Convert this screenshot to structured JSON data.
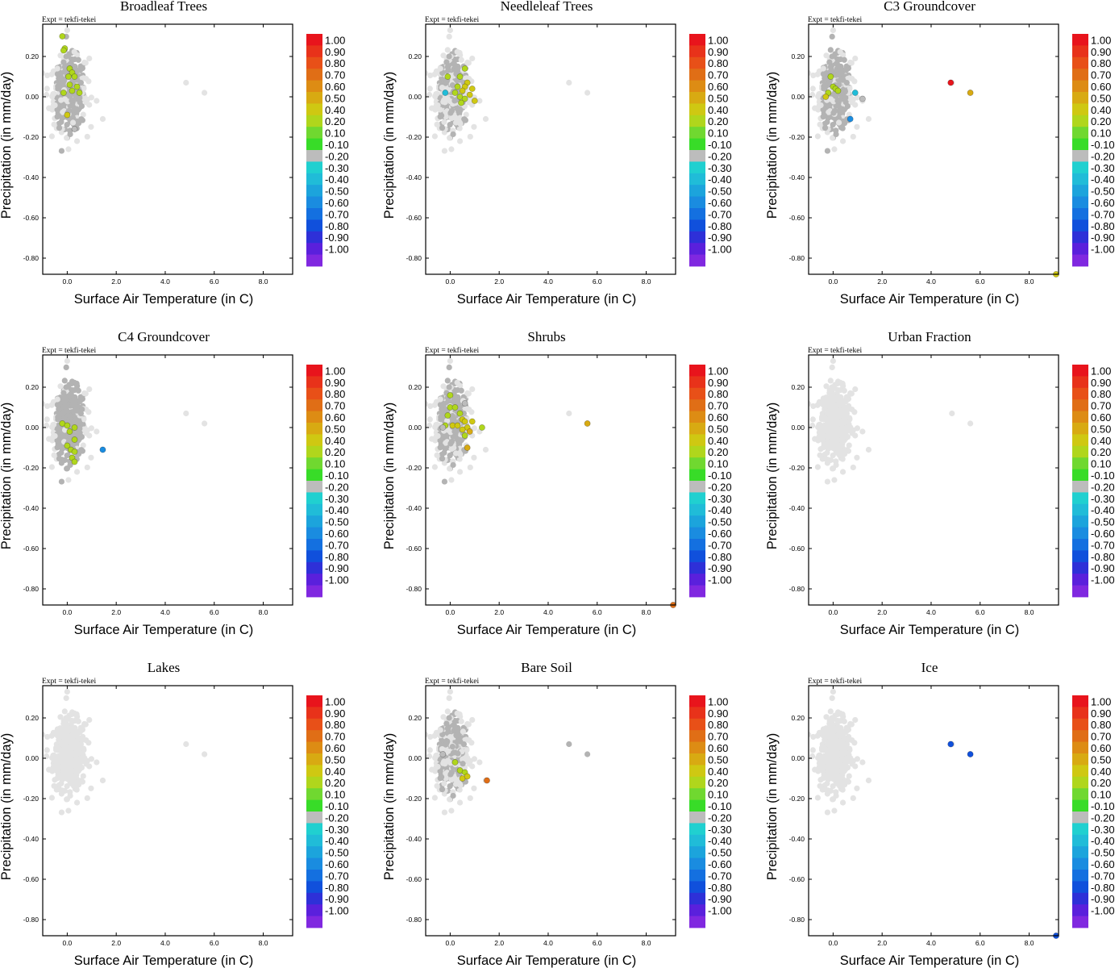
{
  "expt_label": "Expt = tekfi-tekei",
  "xlabel": "Surface Air Temperature (in C)",
  "ylabel": "Precipitation (in mm/day)",
  "x_ticks": [
    0,
    2,
    4,
    6,
    8
  ],
  "x_tick_labels": [
    "0.0",
    "2.0",
    "4.0",
    "6.0",
    "8.0"
  ],
  "y_ticks": [
    0.2,
    0,
    -0.2,
    -0.4,
    -0.6,
    -0.8
  ],
  "y_tick_labels": [
    "0.20",
    "0.00",
    "-0.20",
    "-0.40",
    "-0.60",
    "-0.80"
  ],
  "colorbar": {
    "labels": [
      "1.00",
      "0.90",
      "0.80",
      "0.70",
      "0.60",
      "0.50",
      "0.40",
      "0.20",
      "0.10",
      "-0.10",
      "-0.20",
      "-0.30",
      "-0.40",
      "-0.50",
      "-0.60",
      "-0.70",
      "-0.80",
      "-0.90",
      "-1.00"
    ],
    "colors": [
      "#e8141c",
      "#e8321a",
      "#e85018",
      "#e06e16",
      "#dd8c14",
      "#d8aa12",
      "#cfc812",
      "#b0d61c",
      "#70d830",
      "#38dc28",
      "#bcbcbc",
      "#20d0d0",
      "#20bcd8",
      "#1ca4dc",
      "#1a8ce0",
      "#1470e0",
      "#1050dc",
      "#2e30d8",
      "#5a20dc",
      "#8028e0"
    ]
  },
  "chart_data": [
    {
      "type": "scatter",
      "title": "Broadleaf Trees",
      "xlim": [
        -1,
        9.2
      ],
      "ylim": [
        -0.88,
        0.36
      ],
      "colored_points": [
        {
          "x": -0.2,
          "y": 0.3,
          "v": 0.15
        },
        {
          "x": -0.1,
          "y": 0.24,
          "v": 0.15
        },
        {
          "x": -0.15,
          "y": 0.23,
          "v": 0.15
        },
        {
          "x": 0.1,
          "y": 0.14,
          "v": 0.15
        },
        {
          "x": 0.2,
          "y": 0.12,
          "v": 0.15
        },
        {
          "x": 0.05,
          "y": 0.1,
          "v": 0.15
        },
        {
          "x": 0.3,
          "y": 0.1,
          "v": 0.15
        },
        {
          "x": 0.1,
          "y": 0.06,
          "v": 0.15
        },
        {
          "x": 0.4,
          "y": 0.05,
          "v": 0.15
        },
        {
          "x": -0.15,
          "y": 0.02,
          "v": 0.15
        },
        {
          "x": 0.2,
          "y": 0.03,
          "v": 0.15
        },
        {
          "x": 0.5,
          "y": 0.02,
          "v": 0.15
        },
        {
          "x": 0.0,
          "y": -0.09,
          "v": 0.3
        },
        {
          "x": 0.3,
          "y": -0.16,
          "v": -0.25
        }
      ]
    },
    {
      "type": "scatter",
      "title": "Needleleaf Trees",
      "xlim": [
        -1,
        9.2
      ],
      "ylim": [
        -0.88,
        0.36
      ],
      "colored_points": [
        {
          "x": -0.1,
          "y": 0.1,
          "v": 0.15
        },
        {
          "x": 0.6,
          "y": 0.14,
          "v": 0.15
        },
        {
          "x": 0.4,
          "y": 0.1,
          "v": 0.15
        },
        {
          "x": 0.7,
          "y": 0.07,
          "v": 0.35
        },
        {
          "x": 0.6,
          "y": 0.05,
          "v": 0.35
        },
        {
          "x": 0.3,
          "y": 0.05,
          "v": 0.15
        },
        {
          "x": 0.9,
          "y": 0.04,
          "v": 0.35
        },
        {
          "x": 0.5,
          "y": 0.03,
          "v": 0.35
        },
        {
          "x": 0.2,
          "y": 0.02,
          "v": 0.15
        },
        {
          "x": 0.8,
          "y": 0.01,
          "v": 0.35
        },
        {
          "x": 0.4,
          "y": 0.0,
          "v": 0.15
        },
        {
          "x": 0.6,
          "y": -0.01,
          "v": 0.15
        },
        {
          "x": 1.0,
          "y": -0.02,
          "v": 0.3
        },
        {
          "x": 0.45,
          "y": -0.03,
          "v": 0.15
        },
        {
          "x": -0.2,
          "y": 0.02,
          "v": -0.4
        }
      ]
    },
    {
      "type": "scatter",
      "title": "C3 Groundcover",
      "xlim": [
        -1,
        9.2
      ],
      "ylim": [
        -0.88,
        0.36
      ],
      "colored_points": [
        {
          "x": -0.1,
          "y": 0.1,
          "v": 0.15
        },
        {
          "x": 0.0,
          "y": 0.05,
          "v": 0.15
        },
        {
          "x": 0.1,
          "y": 0.04,
          "v": 0.15
        },
        {
          "x": 0.2,
          "y": 0.03,
          "v": 0.15
        },
        {
          "x": -0.2,
          "y": 0.02,
          "v": 0.15
        },
        {
          "x": -0.3,
          "y": 0.0,
          "v": 0.3
        },
        {
          "x": 0.9,
          "y": 0.02,
          "v": -0.45
        },
        {
          "x": 1.2,
          "y": -0.01,
          "v": -0.25
        },
        {
          "x": 0.7,
          "y": -0.11,
          "v": -0.65
        },
        {
          "x": 4.8,
          "y": 0.07,
          "v": 0.95
        },
        {
          "x": 5.6,
          "y": 0.02,
          "v": 0.45
        },
        {
          "x": 9.1,
          "y": -0.88,
          "v": 0.3
        }
      ]
    },
    {
      "type": "scatter",
      "title": "C4 Groundcover",
      "xlim": [
        -1,
        9.2
      ],
      "ylim": [
        -0.88,
        0.36
      ],
      "colored_points": [
        {
          "x": -0.2,
          "y": 0.02,
          "v": 0.15
        },
        {
          "x": 0.0,
          "y": 0.01,
          "v": 0.15
        },
        {
          "x": 0.3,
          "y": 0.0,
          "v": 0.15
        },
        {
          "x": 0.1,
          "y": -0.02,
          "v": 0.15
        },
        {
          "x": 0.3,
          "y": -0.06,
          "v": 0.15
        },
        {
          "x": 0.0,
          "y": -0.09,
          "v": 0.15
        },
        {
          "x": 0.15,
          "y": -0.11,
          "v": 0.15
        },
        {
          "x": 0.3,
          "y": -0.12,
          "v": 0.15
        },
        {
          "x": 0.2,
          "y": -0.15,
          "v": 0.15
        },
        {
          "x": 0.3,
          "y": -0.17,
          "v": 0.15
        },
        {
          "x": 1.45,
          "y": -0.11,
          "v": -0.65
        }
      ]
    },
    {
      "type": "scatter",
      "title": "Shrubs",
      "xlim": [
        -1,
        9.2
      ],
      "ylim": [
        -0.88,
        0.36
      ],
      "colored_points": [
        {
          "x": 0.0,
          "y": 0.16,
          "v": 0.15
        },
        {
          "x": 0.6,
          "y": 0.12,
          "v": -0.25
        },
        {
          "x": 0.0,
          "y": 0.1,
          "v": 0.15
        },
        {
          "x": 0.2,
          "y": 0.1,
          "v": 0.15
        },
        {
          "x": 0.4,
          "y": 0.07,
          "v": 0.15
        },
        {
          "x": -0.1,
          "y": 0.06,
          "v": 0.15
        },
        {
          "x": 0.5,
          "y": 0.04,
          "v": 0.35
        },
        {
          "x": 0.6,
          "y": 0.03,
          "v": 0.35
        },
        {
          "x": 0.9,
          "y": 0.03,
          "v": 0.35
        },
        {
          "x": -0.2,
          "y": 0.01,
          "v": 0.15
        },
        {
          "x": 0.1,
          "y": 0.01,
          "v": 0.35
        },
        {
          "x": 0.3,
          "y": 0.01,
          "v": 0.35
        },
        {
          "x": 0.7,
          "y": 0.0,
          "v": 0.35
        },
        {
          "x": 1.3,
          "y": 0.0,
          "v": 0.15
        },
        {
          "x": 0.5,
          "y": -0.01,
          "v": 0.35
        },
        {
          "x": 0.8,
          "y": -0.02,
          "v": 0.45
        },
        {
          "x": 0.6,
          "y": -0.04,
          "v": 0.15
        },
        {
          "x": 0.7,
          "y": -0.1,
          "v": 0.45
        },
        {
          "x": -0.3,
          "y": 0.0,
          "v": -0.25
        },
        {
          "x": 5.6,
          "y": 0.02,
          "v": 0.45
        },
        {
          "x": 9.1,
          "y": -0.88,
          "v": 0.65
        }
      ]
    },
    {
      "type": "scatter",
      "title": "Urban Fraction",
      "xlim": [
        -1,
        9.2
      ],
      "ylim": [
        -0.88,
        0.36
      ],
      "colored_points": []
    },
    {
      "type": "scatter",
      "title": "Lakes",
      "xlim": [
        -1,
        9.2
      ],
      "ylim": [
        -0.88,
        0.36
      ],
      "colored_points": []
    },
    {
      "type": "scatter",
      "title": "Bare Soil",
      "xlim": [
        -1,
        9.2
      ],
      "ylim": [
        -0.88,
        0.36
      ],
      "colored_points": [
        {
          "x": 0.2,
          "y": -0.02,
          "v": 0.15
        },
        {
          "x": 0.4,
          "y": -0.06,
          "v": 0.15
        },
        {
          "x": 0.6,
          "y": -0.07,
          "v": 0.15
        },
        {
          "x": 0.5,
          "y": -0.1,
          "v": 0.35
        },
        {
          "x": 0.7,
          "y": -0.09,
          "v": 0.35
        },
        {
          "x": 1.5,
          "y": -0.11,
          "v": 0.65
        },
        {
          "x": -0.3,
          "y": 0.02,
          "v": -0.25
        }
      ]
    },
    {
      "type": "scatter",
      "title": "Ice",
      "xlim": [
        -1,
        9.2
      ],
      "ylim": [
        -0.88,
        0.36
      ],
      "colored_points": [
        {
          "x": 4.8,
          "y": 0.07,
          "v": -0.85
        },
        {
          "x": 5.6,
          "y": 0.02,
          "v": -0.85
        },
        {
          "x": 9.1,
          "y": -0.88,
          "v": -0.85
        }
      ]
    }
  ]
}
